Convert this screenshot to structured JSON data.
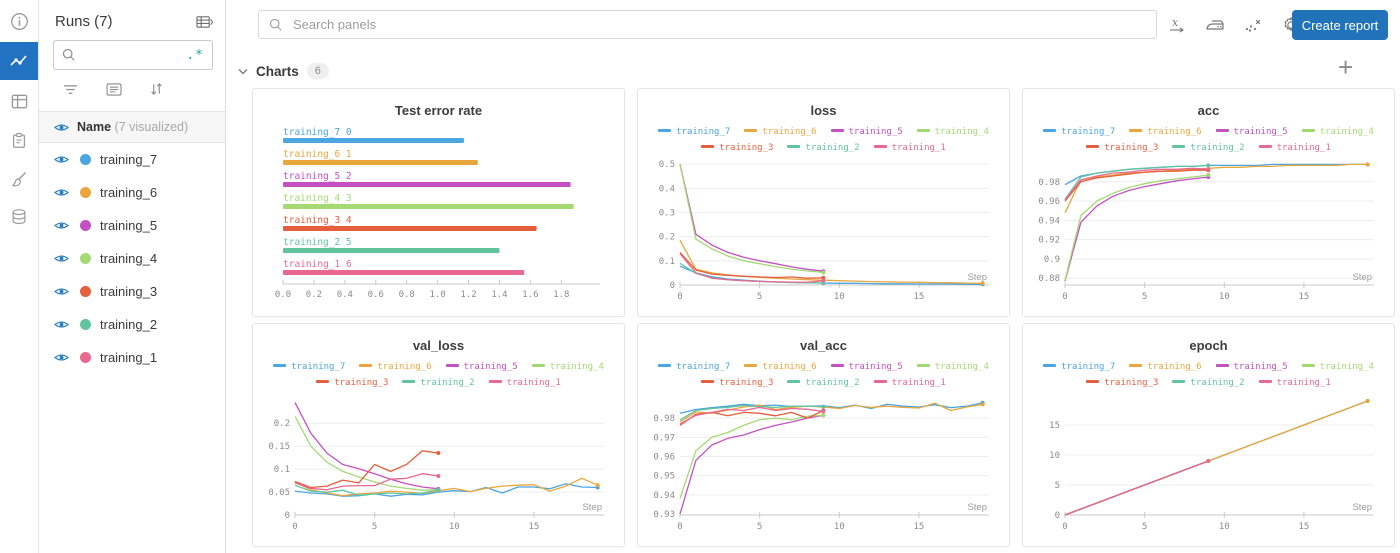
{
  "left_rail": {
    "icons": [
      {
        "name": "info-icon",
        "active": false
      },
      {
        "name": "charts-icon",
        "active": true
      },
      {
        "name": "table-icon",
        "active": false
      },
      {
        "name": "clipboard-icon",
        "active": false
      },
      {
        "name": "sweep-brush-icon",
        "active": false
      },
      {
        "name": "database-icon",
        "active": false
      }
    ]
  },
  "runs_panel": {
    "title": "Runs (7)",
    "collapse_icon": "table-collapse-icon",
    "search": {
      "placeholder": "",
      "regex_icon": ".*"
    },
    "toolbar_icons": [
      "filter-icon",
      "display-options-icon",
      "sort-icon"
    ],
    "header_row": {
      "name_label": "Name",
      "visualized_label": "(7 visualized)"
    },
    "runs": [
      {
        "name": "training_7",
        "color": "#4aa5e0"
      },
      {
        "name": "training_6",
        "color": "#e9a63c"
      },
      {
        "name": "training_5",
        "color": "#c351c3"
      },
      {
        "name": "training_4",
        "color": "#a5d973"
      },
      {
        "name": "training_3",
        "color": "#e55e3d"
      },
      {
        "name": "training_2",
        "color": "#62c49f"
      },
      {
        "name": "training_1",
        "color": "#e8688f"
      }
    ]
  },
  "topbar": {
    "search_placeholder": "Search panels",
    "icons": [
      "x-axis-icon",
      "smoothing-iron-icon",
      "outliers-icon",
      "settings-gear-icon"
    ],
    "create_report_label": "Create report"
  },
  "section": {
    "title": "Charts",
    "count": "6",
    "add_panel_icon": "+"
  },
  "chart_data": [
    {
      "type": "bar",
      "title": "Test error rate",
      "xlabel": "",
      "xlim": [
        0,
        2.05
      ],
      "xticks": [
        0.0,
        0.2,
        0.4,
        0.6,
        0.8,
        1.0,
        1.2,
        1.4,
        1.6,
        1.8
      ],
      "xtick_labels": [
        "0.0",
        "0.2",
        "0.4",
        "0.6",
        "0.8",
        "1.0",
        "1.2",
        "1.4",
        "1.6",
        "1.8"
      ],
      "bars": [
        {
          "name": "training_7",
          "index_label": "0",
          "value": 1.17,
          "color": "#4aa5e0"
        },
        {
          "name": "training_6",
          "index_label": "1",
          "value": 1.26,
          "color": "#e9a63c"
        },
        {
          "name": "training_5",
          "index_label": "2",
          "value": 1.86,
          "color": "#c351c3"
        },
        {
          "name": "training_4",
          "index_label": "3",
          "value": 1.88,
          "color": "#a5d973"
        },
        {
          "name": "training_3",
          "index_label": "4",
          "value": 1.64,
          "color": "#e55e3d"
        },
        {
          "name": "training_2",
          "index_label": "5",
          "value": 1.4,
          "color": "#62c49f"
        },
        {
          "name": "training_1",
          "index_label": "6",
          "value": 1.56,
          "color": "#e8688f"
        }
      ]
    },
    {
      "type": "line",
      "title": "loss",
      "xlabel": "Step",
      "xlim": [
        0,
        19.4
      ],
      "xticks": [
        0,
        5,
        10,
        15
      ],
      "ylim": [
        0,
        0.505
      ],
      "yticks": [
        0,
        0.1,
        0.2,
        0.3,
        0.4,
        0.5
      ],
      "ytick_labels": [
        "0",
        "0.1",
        "0.2",
        "0.3",
        "0.4",
        "0.5"
      ],
      "series": [
        {
          "name": "training_7",
          "color": "#4aa5e0",
          "data": [
            0.078,
            0.05,
            0.034,
            0.025,
            0.02,
            0.016,
            0.013,
            0.011,
            0.01,
            0.008,
            0.007,
            0.007,
            0.006,
            0.005,
            0.005,
            0.004,
            0.004,
            0.004,
            0.003,
            0.003
          ]
        },
        {
          "name": "training_6",
          "color": "#e9a63c",
          "data": [
            0.185,
            0.065,
            0.05,
            0.042,
            0.036,
            0.032,
            0.028,
            0.025,
            0.022,
            0.02,
            0.018,
            0.016,
            0.014,
            0.013,
            0.012,
            0.011,
            0.01,
            0.009,
            0.008,
            0.007
          ]
        },
        {
          "name": "training_5",
          "color": "#c351c3",
          "data": [
            0.5,
            0.21,
            0.165,
            0.135,
            0.115,
            0.1,
            0.088,
            0.075,
            0.065,
            0.057
          ]
        },
        {
          "name": "training_4",
          "color": "#a5d973",
          "data": [
            0.5,
            0.19,
            0.15,
            0.12,
            0.1,
            0.088,
            0.076,
            0.066,
            0.058,
            0.052
          ]
        },
        {
          "name": "training_3",
          "color": "#e55e3d",
          "data": [
            0.135,
            0.062,
            0.045,
            0.04,
            0.036,
            0.033,
            0.031,
            0.033,
            0.028,
            0.03
          ]
        },
        {
          "name": "training_2",
          "color": "#62c49f",
          "data": [
            0.09,
            0.048,
            0.03,
            0.022,
            0.018,
            0.015,
            0.012,
            0.01,
            0.009,
            0.008
          ]
        },
        {
          "name": "training_1",
          "color": "#e8688f",
          "data": [
            0.13,
            0.05,
            0.028,
            0.022,
            0.018,
            0.015,
            0.013,
            0.012,
            0.011,
            0.018
          ]
        }
      ]
    },
    {
      "type": "line",
      "title": "acc",
      "xlabel": "Step",
      "xlim": [
        0,
        19.4
      ],
      "xticks": [
        0,
        5,
        10,
        15
      ],
      "ylim": [
        0.873,
        0.9995
      ],
      "yticks": [
        0.88,
        0.9,
        0.92,
        0.94,
        0.96,
        0.98
      ],
      "ytick_labels": [
        "0.88",
        "0.9",
        "0.92",
        "0.94",
        "0.96",
        "0.98"
      ],
      "series": [
        {
          "name": "training_7",
          "color": "#4aa5e0",
          "data": [
            0.977,
            0.986,
            0.989,
            0.991,
            0.993,
            0.994,
            0.995,
            0.996,
            0.996,
            0.997,
            0.997,
            0.997,
            0.997,
            0.998,
            0.998,
            0.998,
            0.998,
            0.998,
            0.998,
            0.998
          ]
        },
        {
          "name": "training_6",
          "color": "#e9a63c",
          "data": [
            0.948,
            0.982,
            0.985,
            0.987,
            0.989,
            0.99,
            0.991,
            0.992,
            0.993,
            0.994,
            0.995,
            0.995,
            0.996,
            0.996,
            0.997,
            0.997,
            0.997,
            0.997,
            0.998,
            0.998
          ]
        },
        {
          "name": "training_5",
          "color": "#c351c3",
          "data": [
            0.877,
            0.938,
            0.955,
            0.965,
            0.971,
            0.975,
            0.978,
            0.981,
            0.983,
            0.985
          ]
        },
        {
          "name": "training_4",
          "color": "#a5d973",
          "data": [
            0.878,
            0.945,
            0.96,
            0.968,
            0.974,
            0.978,
            0.981,
            0.983,
            0.985,
            0.987
          ]
        },
        {
          "name": "training_3",
          "color": "#e55e3d",
          "data": [
            0.96,
            0.98,
            0.984,
            0.986,
            0.988,
            0.99,
            0.991,
            0.991,
            0.992,
            0.992
          ]
        },
        {
          "name": "training_2",
          "color": "#62c49f",
          "data": [
            0.962,
            0.985,
            0.989,
            0.991,
            0.993,
            0.994,
            0.995,
            0.996,
            0.996,
            0.997
          ]
        },
        {
          "name": "training_1",
          "color": "#e8688f",
          "data": [
            0.961,
            0.982,
            0.986,
            0.989,
            0.99,
            0.992,
            0.993,
            0.993,
            0.994,
            0.993
          ]
        }
      ]
    },
    {
      "type": "line",
      "title": "val_loss",
      "xlabel": "Step",
      "xlim": [
        0,
        19.4
      ],
      "xticks": [
        0,
        5,
        10,
        15
      ],
      "ylim": [
        0,
        0.255
      ],
      "yticks": [
        0,
        0.05,
        0.1,
        0.15,
        0.2
      ],
      "ytick_labels": [
        "0",
        "0.05",
        "0.1",
        "0.15",
        "0.2"
      ],
      "series": [
        {
          "name": "training_7",
          "color": "#4aa5e0",
          "data": [
            0.052,
            0.048,
            0.046,
            0.041,
            0.042,
            0.046,
            0.041,
            0.045,
            0.044,
            0.05,
            0.053,
            0.051,
            0.06,
            0.048,
            0.061,
            0.061,
            0.057,
            0.068,
            0.061,
            0.06
          ]
        },
        {
          "name": "training_6",
          "color": "#e9a63c",
          "data": [
            0.072,
            0.055,
            0.048,
            0.042,
            0.046,
            0.048,
            0.052,
            0.05,
            0.047,
            0.053,
            0.058,
            0.051,
            0.058,
            0.063,
            0.065,
            0.066,
            0.052,
            0.063,
            0.08,
            0.065
          ]
        },
        {
          "name": "training_5",
          "color": "#c351c3",
          "data": [
            0.245,
            0.178,
            0.135,
            0.11,
            0.101,
            0.09,
            0.078,
            0.068,
            0.061,
            0.057
          ]
        },
        {
          "name": "training_4",
          "color": "#a5d973",
          "data": [
            0.215,
            0.15,
            0.115,
            0.095,
            0.083,
            0.072,
            0.063,
            0.058,
            0.054,
            0.055
          ]
        },
        {
          "name": "training_3",
          "color": "#e55e3d",
          "data": [
            0.073,
            0.06,
            0.063,
            0.076,
            0.07,
            0.11,
            0.095,
            0.11,
            0.14,
            0.135
          ]
        },
        {
          "name": "training_2",
          "color": "#62c49f",
          "data": [
            0.065,
            0.052,
            0.05,
            0.054,
            0.043,
            0.046,
            0.048,
            0.046,
            0.048,
            0.055
          ]
        },
        {
          "name": "training_1",
          "color": "#e8688f",
          "data": [
            0.07,
            0.058,
            0.055,
            0.063,
            0.064,
            0.064,
            0.078,
            0.08,
            0.09,
            0.085
          ]
        }
      ]
    },
    {
      "type": "line",
      "title": "val_acc",
      "xlabel": "Step",
      "xlim": [
        0,
        19.4
      ],
      "xticks": [
        0,
        5,
        10,
        15
      ],
      "ylim": [
        0.9295,
        0.9905
      ],
      "yticks": [
        0.93,
        0.94,
        0.95,
        0.96,
        0.97,
        0.98
      ],
      "ytick_labels": [
        "0.93",
        "0.94",
        "0.95",
        "0.96",
        "0.97",
        "0.98"
      ],
      "series": [
        {
          "name": "training_7",
          "color": "#4aa5e0",
          "data": [
            0.9825,
            0.9845,
            0.9855,
            0.9862,
            0.9872,
            0.9865,
            0.9868,
            0.986,
            0.9862,
            0.9864,
            0.9855,
            0.9868,
            0.985,
            0.9872,
            0.9862,
            0.9858,
            0.987,
            0.9855,
            0.9862,
            0.988
          ]
        },
        {
          "name": "training_6",
          "color": "#e9a63c",
          "data": [
            0.978,
            0.9832,
            0.9825,
            0.9842,
            0.9858,
            0.9868,
            0.9845,
            0.9856,
            0.9862,
            0.9858,
            0.985,
            0.9866,
            0.9856,
            0.9862,
            0.9856,
            0.9853,
            0.9878,
            0.984,
            0.9858,
            0.9872
          ]
        },
        {
          "name": "training_5",
          "color": "#c351c3",
          "data": [
            0.93,
            0.958,
            0.966,
            0.9695,
            0.9712,
            0.974,
            0.9762,
            0.978,
            0.98,
            0.9815
          ]
        },
        {
          "name": "training_4",
          "color": "#a5d973",
          "data": [
            0.938,
            0.963,
            0.97,
            0.9725,
            0.9762,
            0.9792,
            0.98,
            0.9792,
            0.981,
            0.9815
          ]
        },
        {
          "name": "training_3",
          "color": "#e55e3d",
          "data": [
            0.9762,
            0.982,
            0.983,
            0.9812,
            0.983,
            0.9825,
            0.9812,
            0.983,
            0.98,
            0.984
          ]
        },
        {
          "name": "training_2",
          "color": "#62c49f",
          "data": [
            0.979,
            0.984,
            0.985,
            0.9856,
            0.9866,
            0.986,
            0.9856,
            0.9862,
            0.9863,
            0.986
          ]
        },
        {
          "name": "training_1",
          "color": "#e8688f",
          "data": [
            0.977,
            0.9815,
            0.983,
            0.9846,
            0.984,
            0.9856,
            0.984,
            0.985,
            0.9846,
            0.9835
          ]
        }
      ]
    },
    {
      "type": "line",
      "title": "epoch",
      "xlabel": "Step",
      "xlim": [
        0,
        19.4
      ],
      "xticks": [
        0,
        5,
        10,
        15
      ],
      "ylim": [
        0,
        19.5
      ],
      "yticks": [
        0,
        5,
        10,
        15
      ],
      "ytick_labels": [
        "0",
        "5",
        "10",
        "15"
      ],
      "series": [
        {
          "name": "training_7",
          "color": "#4aa5e0",
          "data": [
            0,
            1,
            2,
            3,
            4,
            5,
            6,
            7,
            8,
            9,
            10,
            11,
            12,
            13,
            14,
            15,
            16,
            17,
            18,
            19
          ]
        },
        {
          "name": "training_6",
          "color": "#e9a63c",
          "data": [
            0,
            1,
            2,
            3,
            4,
            5,
            6,
            7,
            8,
            9,
            10,
            11,
            12,
            13,
            14,
            15,
            16,
            17,
            18,
            19
          ]
        },
        {
          "name": "training_5",
          "color": "#c351c3",
          "data": [
            0,
            1,
            2,
            3,
            4,
            5,
            6,
            7,
            8,
            9
          ]
        },
        {
          "name": "training_4",
          "color": "#a5d973",
          "data": [
            0,
            1,
            2,
            3,
            4,
            5,
            6,
            7,
            8,
            9
          ]
        },
        {
          "name": "training_3",
          "color": "#e55e3d",
          "data": [
            0,
            1,
            2,
            3,
            4,
            5,
            6,
            7,
            8,
            9
          ]
        },
        {
          "name": "training_2",
          "color": "#62c49f",
          "data": [
            0,
            1,
            2,
            3,
            4,
            5,
            6,
            7,
            8,
            9
          ]
        },
        {
          "name": "training_1",
          "color": "#e8688f",
          "data": [
            0,
            1,
            2,
            3,
            4,
            5,
            6,
            7,
            8,
            9
          ]
        }
      ]
    }
  ],
  "colors": {
    "accent_blue": "#2173b9",
    "eye_blue": "#2d7fc1",
    "rail_active": "#2272c2"
  }
}
